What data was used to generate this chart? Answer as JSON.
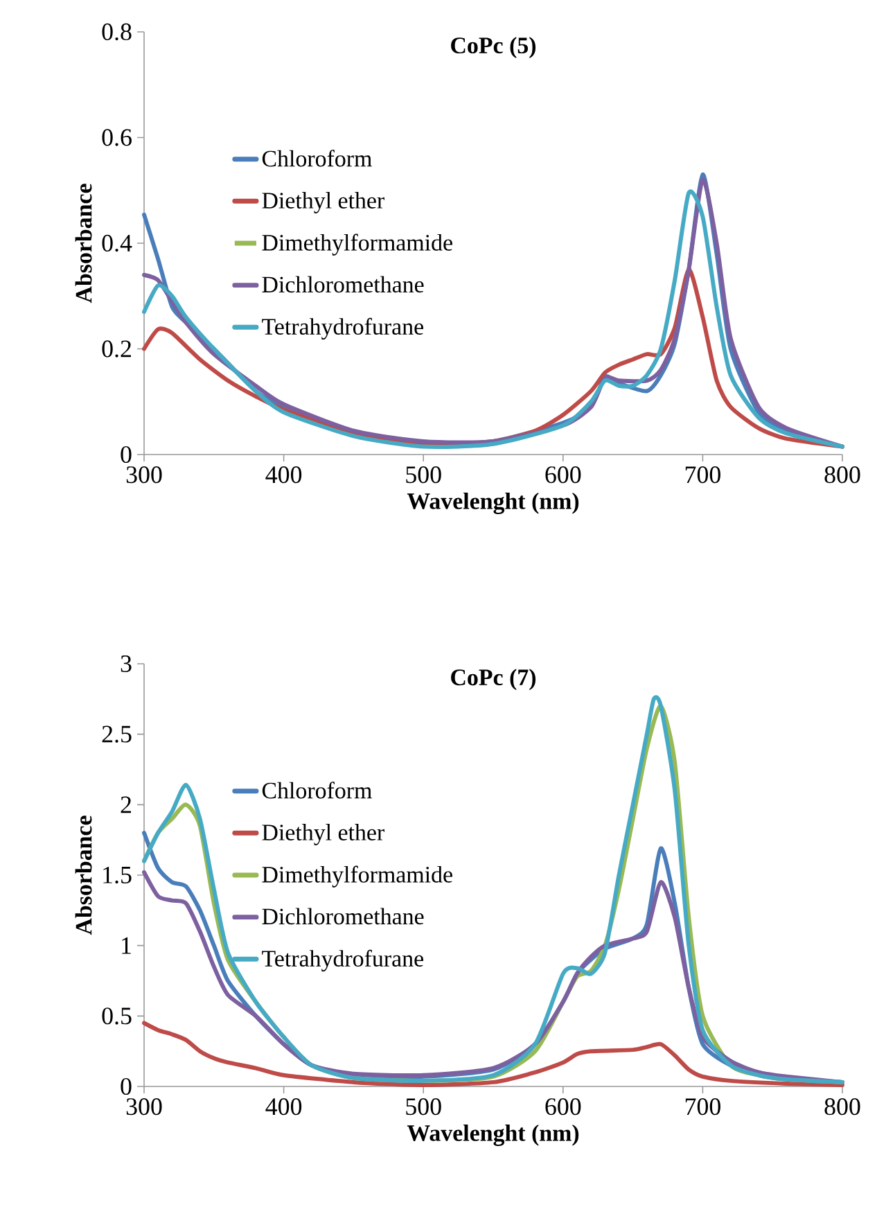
{
  "chart_data": [
    {
      "type": "line",
      "title": "CoPc (5)",
      "xlabel": "Wavelenght (nm)",
      "ylabel": "Absorbance",
      "xlim": [
        300,
        800
      ],
      "ylim": [
        0,
        0.8
      ],
      "xticks": [
        300,
        400,
        500,
        600,
        700,
        800
      ],
      "yticks": [
        0,
        0.2,
        0.4,
        0.6,
        0.8
      ],
      "legend": "left",
      "series": [
        {
          "name": "Chloroform",
          "color": "#4a7ebb",
          "x": [
            300,
            310,
            320,
            330,
            350,
            380,
            400,
            450,
            500,
            550,
            600,
            620,
            630,
            640,
            660,
            670,
            680,
            690,
            700,
            710,
            720,
            740,
            760,
            800
          ],
          "values": [
            0.454,
            0.37,
            0.28,
            0.25,
            0.2,
            0.12,
            0.09,
            0.04,
            0.02,
            0.025,
            0.06,
            0.09,
            0.147,
            0.135,
            0.12,
            0.15,
            0.21,
            0.35,
            0.53,
            0.38,
            0.2,
            0.08,
            0.045,
            0.015
          ]
        },
        {
          "name": "Diethyl ether",
          "color": "#be4b48",
          "x": [
            300,
            310,
            320,
            340,
            360,
            380,
            400,
            450,
            500,
            550,
            580,
            600,
            620,
            630,
            640,
            650,
            660,
            670,
            680,
            690,
            700,
            710,
            720,
            740,
            760,
            800
          ],
          "values": [
            0.2,
            0.237,
            0.23,
            0.18,
            0.14,
            0.11,
            0.085,
            0.04,
            0.02,
            0.025,
            0.045,
            0.075,
            0.12,
            0.155,
            0.17,
            0.18,
            0.19,
            0.19,
            0.24,
            0.35,
            0.26,
            0.14,
            0.09,
            0.05,
            0.03,
            0.015
          ]
        },
        {
          "name": "Dimethylformamide",
          "color": "#98b954"
        },
        {
          "name": "Dichloromethane",
          "color": "#7d60a0",
          "x": [
            300,
            310,
            320,
            330,
            350,
            380,
            400,
            450,
            500,
            550,
            600,
            620,
            630,
            640,
            660,
            670,
            680,
            690,
            700,
            710,
            720,
            740,
            760,
            800
          ],
          "values": [
            0.34,
            0.33,
            0.29,
            0.25,
            0.19,
            0.13,
            0.095,
            0.045,
            0.025,
            0.025,
            0.055,
            0.09,
            0.145,
            0.14,
            0.14,
            0.16,
            0.22,
            0.35,
            0.52,
            0.4,
            0.22,
            0.09,
            0.05,
            0.015
          ]
        },
        {
          "name": "Tetrahydrofurane",
          "color": "#46aac5",
          "x": [
            300,
            310,
            320,
            330,
            350,
            380,
            400,
            450,
            500,
            550,
            600,
            620,
            630,
            640,
            650,
            660,
            670,
            680,
            690,
            700,
            710,
            720,
            740,
            760,
            800
          ],
          "values": [
            0.27,
            0.32,
            0.3,
            0.26,
            0.2,
            0.12,
            0.08,
            0.035,
            0.015,
            0.02,
            0.055,
            0.1,
            0.14,
            0.13,
            0.13,
            0.15,
            0.2,
            0.33,
            0.495,
            0.45,
            0.28,
            0.15,
            0.07,
            0.04,
            0.015
          ]
        }
      ]
    },
    {
      "type": "line",
      "title": "CoPc (7)",
      "xlabel": "Wavelenght (nm)",
      "ylabel": "Absorbance",
      "xlim": [
        300,
        800
      ],
      "ylim": [
        0,
        3
      ],
      "xticks": [
        300,
        400,
        500,
        600,
        700,
        800
      ],
      "yticks": [
        0,
        0.5,
        1,
        1.5,
        2,
        2.5,
        3
      ],
      "legend": "left",
      "series": [
        {
          "name": "Chloroform",
          "color": "#4a7ebb",
          "x": [
            300,
            310,
            320,
            330,
            340,
            350,
            360,
            380,
            400,
            420,
            450,
            500,
            550,
            580,
            600,
            610,
            620,
            630,
            650,
            660,
            670,
            680,
            690,
            700,
            720,
            740,
            760,
            800
          ],
          "values": [
            1.8,
            1.55,
            1.45,
            1.42,
            1.25,
            1.0,
            0.75,
            0.5,
            0.3,
            0.15,
            0.08,
            0.07,
            0.12,
            0.3,
            0.6,
            0.8,
            0.9,
            0.98,
            1.05,
            1.15,
            1.69,
            1.3,
            0.7,
            0.3,
            0.15,
            0.1,
            0.06,
            0.03
          ]
        },
        {
          "name": "Diethyl ether",
          "color": "#be4b48",
          "x": [
            300,
            310,
            320,
            330,
            340,
            350,
            360,
            380,
            400,
            450,
            500,
            550,
            580,
            600,
            610,
            620,
            650,
            660,
            670,
            680,
            690,
            700,
            720,
            760,
            800
          ],
          "values": [
            0.45,
            0.4,
            0.37,
            0.33,
            0.25,
            0.2,
            0.17,
            0.13,
            0.08,
            0.03,
            0.01,
            0.03,
            0.1,
            0.17,
            0.23,
            0.25,
            0.26,
            0.28,
            0.3,
            0.22,
            0.12,
            0.07,
            0.04,
            0.02,
            0.01
          ]
        },
        {
          "name": "Dimethylformamide",
          "color": "#98b954",
          "x": [
            300,
            310,
            320,
            330,
            340,
            350,
            360,
            380,
            400,
            420,
            450,
            500,
            550,
            580,
            600,
            610,
            620,
            630,
            640,
            650,
            660,
            670,
            680,
            690,
            700,
            720,
            740,
            760,
            800
          ],
          "values": [
            1.6,
            1.8,
            1.9,
            2.0,
            1.85,
            1.3,
            0.9,
            0.6,
            0.35,
            0.15,
            0.06,
            0.04,
            0.07,
            0.25,
            0.6,
            0.78,
            0.82,
            1.0,
            1.4,
            1.9,
            2.4,
            2.7,
            2.3,
            1.2,
            0.5,
            0.15,
            0.08,
            0.05,
            0.03
          ]
        },
        {
          "name": "Dichloromethane",
          "color": "#7d60a0",
          "x": [
            300,
            310,
            320,
            330,
            340,
            350,
            360,
            380,
            400,
            420,
            450,
            500,
            550,
            580,
            600,
            610,
            620,
            630,
            650,
            660,
            670,
            680,
            690,
            700,
            720,
            740,
            760,
            800
          ],
          "values": [
            1.52,
            1.35,
            1.32,
            1.3,
            1.1,
            0.85,
            0.65,
            0.5,
            0.3,
            0.15,
            0.09,
            0.08,
            0.13,
            0.3,
            0.6,
            0.8,
            0.92,
            1.0,
            1.05,
            1.1,
            1.45,
            1.2,
            0.7,
            0.35,
            0.18,
            0.1,
            0.07,
            0.03
          ]
        },
        {
          "name": "Tetrahydrofurane",
          "color": "#46aac5",
          "x": [
            300,
            310,
            320,
            330,
            340,
            350,
            360,
            380,
            400,
            420,
            450,
            500,
            550,
            580,
            600,
            610,
            620,
            630,
            640,
            650,
            660,
            665,
            670,
            680,
            690,
            700,
            720,
            740,
            760,
            800
          ],
          "values": [
            1.6,
            1.8,
            1.95,
            2.14,
            1.9,
            1.4,
            0.95,
            0.6,
            0.35,
            0.15,
            0.06,
            0.04,
            0.08,
            0.3,
            0.8,
            0.84,
            0.8,
            0.95,
            1.5,
            2.0,
            2.5,
            2.75,
            2.7,
            2.1,
            1.0,
            0.4,
            0.15,
            0.08,
            0.05,
            0.03
          ]
        }
      ]
    }
  ]
}
